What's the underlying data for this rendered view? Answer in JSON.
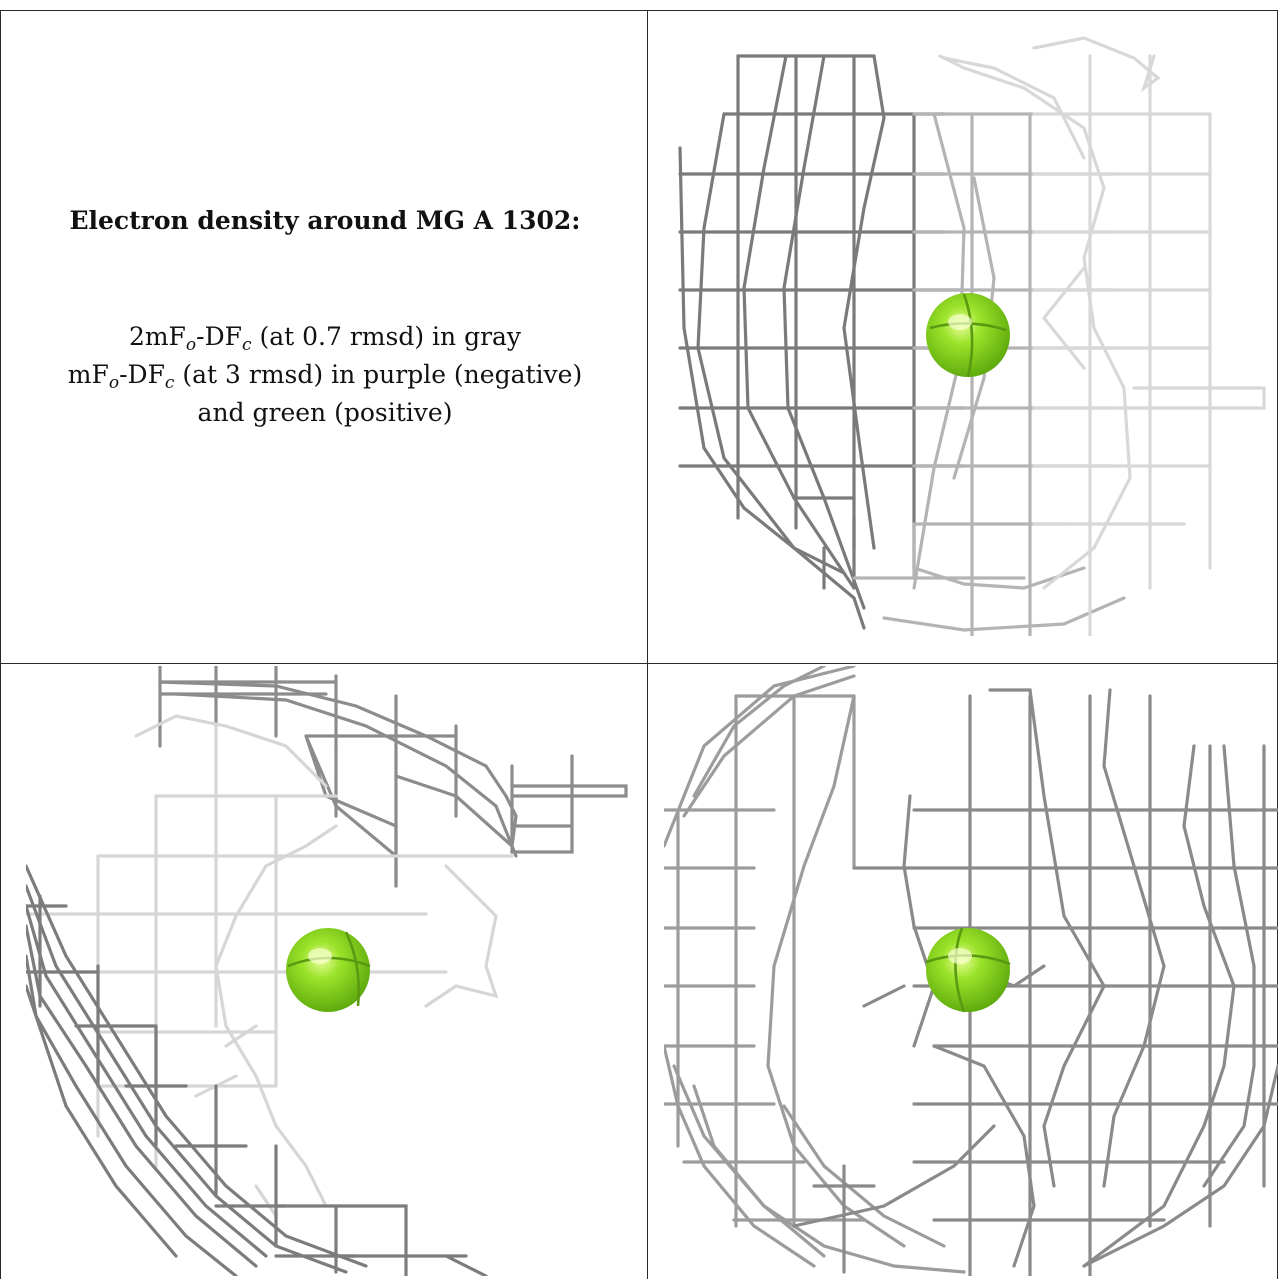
{
  "figure": {
    "title": "Electron density around MG A 1302:",
    "line1": {
      "prefix": "2mF",
      "sub1": "o",
      "mid": "-DF",
      "sub2": "c",
      "suffix": " (at 0.7 rmsd) in gray"
    },
    "line2": {
      "prefix": "mF",
      "sub1": "o",
      "mid": "-DF",
      "sub2": "c",
      "suffix": " (at 3 rmsd) in purple (negative)"
    },
    "line3": "and green (positive)"
  },
  "colors": {
    "mesh_dark": "#555555",
    "mesh_mid": "#9a9a9a",
    "mesh_light": "#cfcfcf",
    "atom_green": "#7fd319",
    "border": "#2a2a2a"
  },
  "panels": [
    {
      "name": "view-top-right",
      "atom": "MG A 1302"
    },
    {
      "name": "view-bottom-left",
      "atom": "MG A 1302"
    },
    {
      "name": "view-bottom-right",
      "atom": "MG A 1302"
    }
  ]
}
